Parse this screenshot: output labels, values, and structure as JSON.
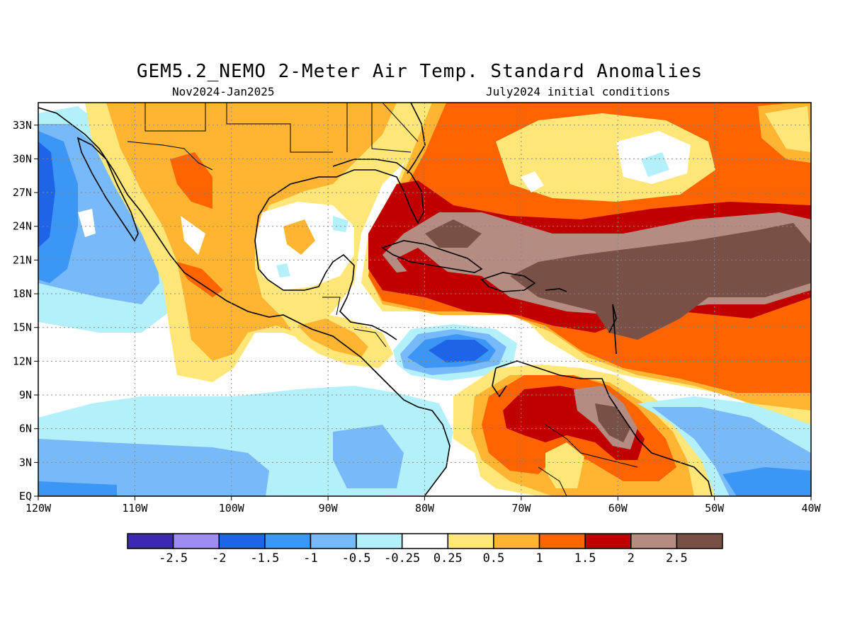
{
  "title": "GEM5.2_NEMO 2-Meter Air Temp. Standard Anomalies",
  "subtitle_left": "Nov2024-Jan2025",
  "subtitle_right": "July2024 initial conditions",
  "map": {
    "lon_range": [
      -120,
      -40
    ],
    "lat_range": [
      0,
      35
    ],
    "lon_ticks": [
      {
        "value": -120,
        "label": "120W"
      },
      {
        "value": -110,
        "label": "110W"
      },
      {
        "value": -100,
        "label": "100W"
      },
      {
        "value": -90,
        "label": "90W"
      },
      {
        "value": -80,
        "label": "80W"
      },
      {
        "value": -70,
        "label": "70W"
      },
      {
        "value": -60,
        "label": "60W"
      },
      {
        "value": -50,
        "label": "50W"
      },
      {
        "value": -40,
        "label": "40W"
      }
    ],
    "lat_ticks": [
      {
        "value": 0,
        "label": "EQ"
      },
      {
        "value": 3,
        "label": "3N"
      },
      {
        "value": 6,
        "label": "6N"
      },
      {
        "value": 9,
        "label": "9N"
      },
      {
        "value": 12,
        "label": "12N"
      },
      {
        "value": 15,
        "label": "15N"
      },
      {
        "value": 18,
        "label": "18N"
      },
      {
        "value": 21,
        "label": "21N"
      },
      {
        "value": 24,
        "label": "24N"
      },
      {
        "value": 27,
        "label": "27N"
      },
      {
        "value": 30,
        "label": "30N"
      },
      {
        "value": 33,
        "label": "33N"
      }
    ],
    "grid": "dotted"
  },
  "colorbar": {
    "colors": [
      "#3b28b4",
      "#9f8cf0",
      "#1e64e6",
      "#3c96f5",
      "#78b9fa",
      "#b4f0fa",
      "#ffffff",
      "#ffe678",
      "#ffb432",
      "#ff6400",
      "#c00000",
      "#b48c82",
      "#785046"
    ],
    "labels": [
      "-2.5",
      "-2",
      "-1.5",
      "-1",
      "-0.5",
      "-0.25",
      "0.25",
      "0.5",
      "1",
      "1.5",
      "2",
      "2.5"
    ]
  }
}
